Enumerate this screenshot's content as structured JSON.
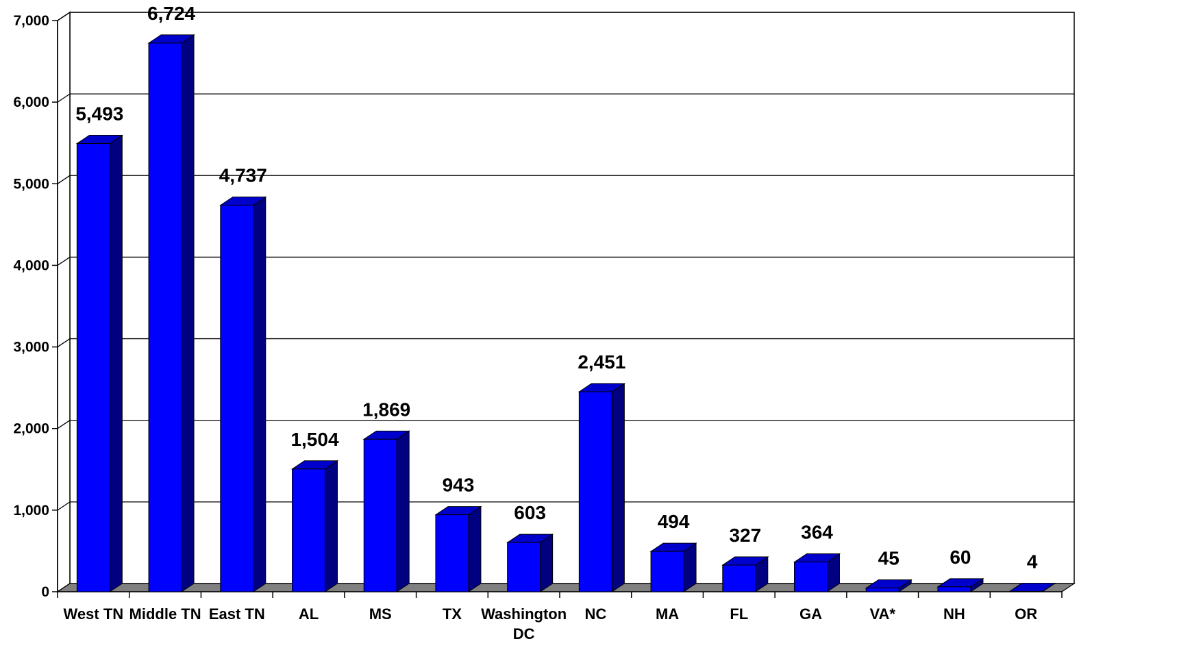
{
  "chart_data": {
    "type": "bar",
    "title": "",
    "xlabel": "",
    "ylabel": "",
    "categories": [
      "West TN",
      "Middle TN",
      "East TN",
      "AL",
      "MS",
      "TX",
      "Washington DC",
      "NC",
      "MA",
      "FL",
      "GA",
      "VA*",
      "NH",
      "OR"
    ],
    "category_lines": [
      [
        "West TN"
      ],
      [
        "Middle TN"
      ],
      [
        "East TN"
      ],
      [
        "AL"
      ],
      [
        "MS"
      ],
      [
        "TX"
      ],
      [
        "Washington",
        "DC"
      ],
      [
        "NC"
      ],
      [
        "MA"
      ],
      [
        "FL"
      ],
      [
        "GA"
      ],
      [
        "VA*"
      ],
      [
        "NH"
      ],
      [
        "OR"
      ]
    ],
    "values": [
      5493,
      6724,
      4737,
      1504,
      1869,
      943,
      603,
      2451,
      494,
      327,
      364,
      45,
      60,
      4
    ],
    "value_labels": [
      "5,493",
      "6,724",
      "4,737",
      "1,504",
      "1,869",
      "943",
      "603",
      "2,451",
      "494",
      "327",
      "364",
      "45",
      "60",
      "4"
    ],
    "ylim": [
      0,
      7000
    ],
    "yticks": [
      0,
      1000,
      2000,
      3000,
      4000,
      5000,
      6000,
      7000
    ],
    "ytick_labels": [
      "0",
      "1,000",
      "2,000",
      "3,000",
      "4,000",
      "5,000",
      "6,000",
      "7,000"
    ],
    "grid": true,
    "legend": "none",
    "style": "3d-column",
    "colors": {
      "bar_front": "#0000ff",
      "bar_side": "#000080",
      "bar_top": "#0000cc",
      "floor": "#808080",
      "wall": "#ffffff",
      "grid": "#000000"
    }
  }
}
